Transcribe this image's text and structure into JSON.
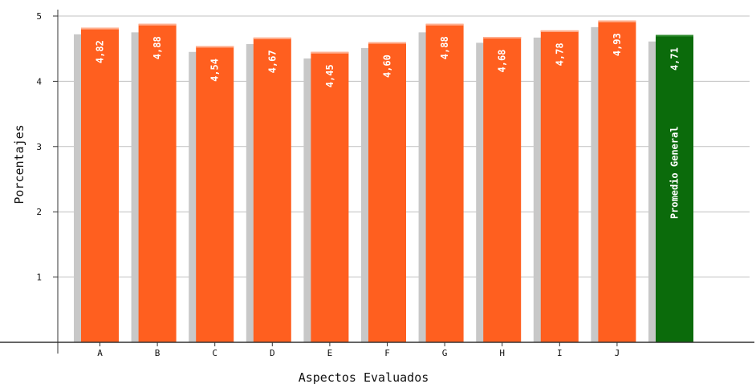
{
  "chart_data": {
    "type": "bar",
    "xlabel": "Aspectos Evaluados",
    "ylabel": "Porcentajes",
    "ylim": [
      0,
      5
    ],
    "yticks": [
      1,
      2,
      3,
      4,
      5
    ],
    "grid": true,
    "categories": [
      "A",
      "B",
      "C",
      "D",
      "E",
      "F",
      "G",
      "H",
      "I",
      "J",
      ""
    ],
    "values": [
      4.82,
      4.88,
      4.54,
      4.67,
      4.45,
      4.6,
      4.88,
      4.68,
      4.78,
      4.93,
      4.71
    ],
    "labels": [
      "4,82",
      "4,88",
      "4,54",
      "4,67",
      "4,45",
      "4,60",
      "4,88",
      "4,68",
      "4,78",
      "4,93",
      "4,71"
    ],
    "shadow_values": [
      4.72,
      4.75,
      4.45,
      4.57,
      4.35,
      4.51,
      4.75,
      4.59,
      4.67,
      4.83,
      4.61
    ],
    "special_bar": {
      "index": 10,
      "caption": "Promedio General"
    },
    "colors": {
      "bar": "#ff5f1f",
      "bar_highlight": "#ffb090",
      "special_bar": "#0b6b0b",
      "shadow": "#c8c8c8",
      "grid": "#c0c0c0",
      "axis": "#333333"
    }
  }
}
